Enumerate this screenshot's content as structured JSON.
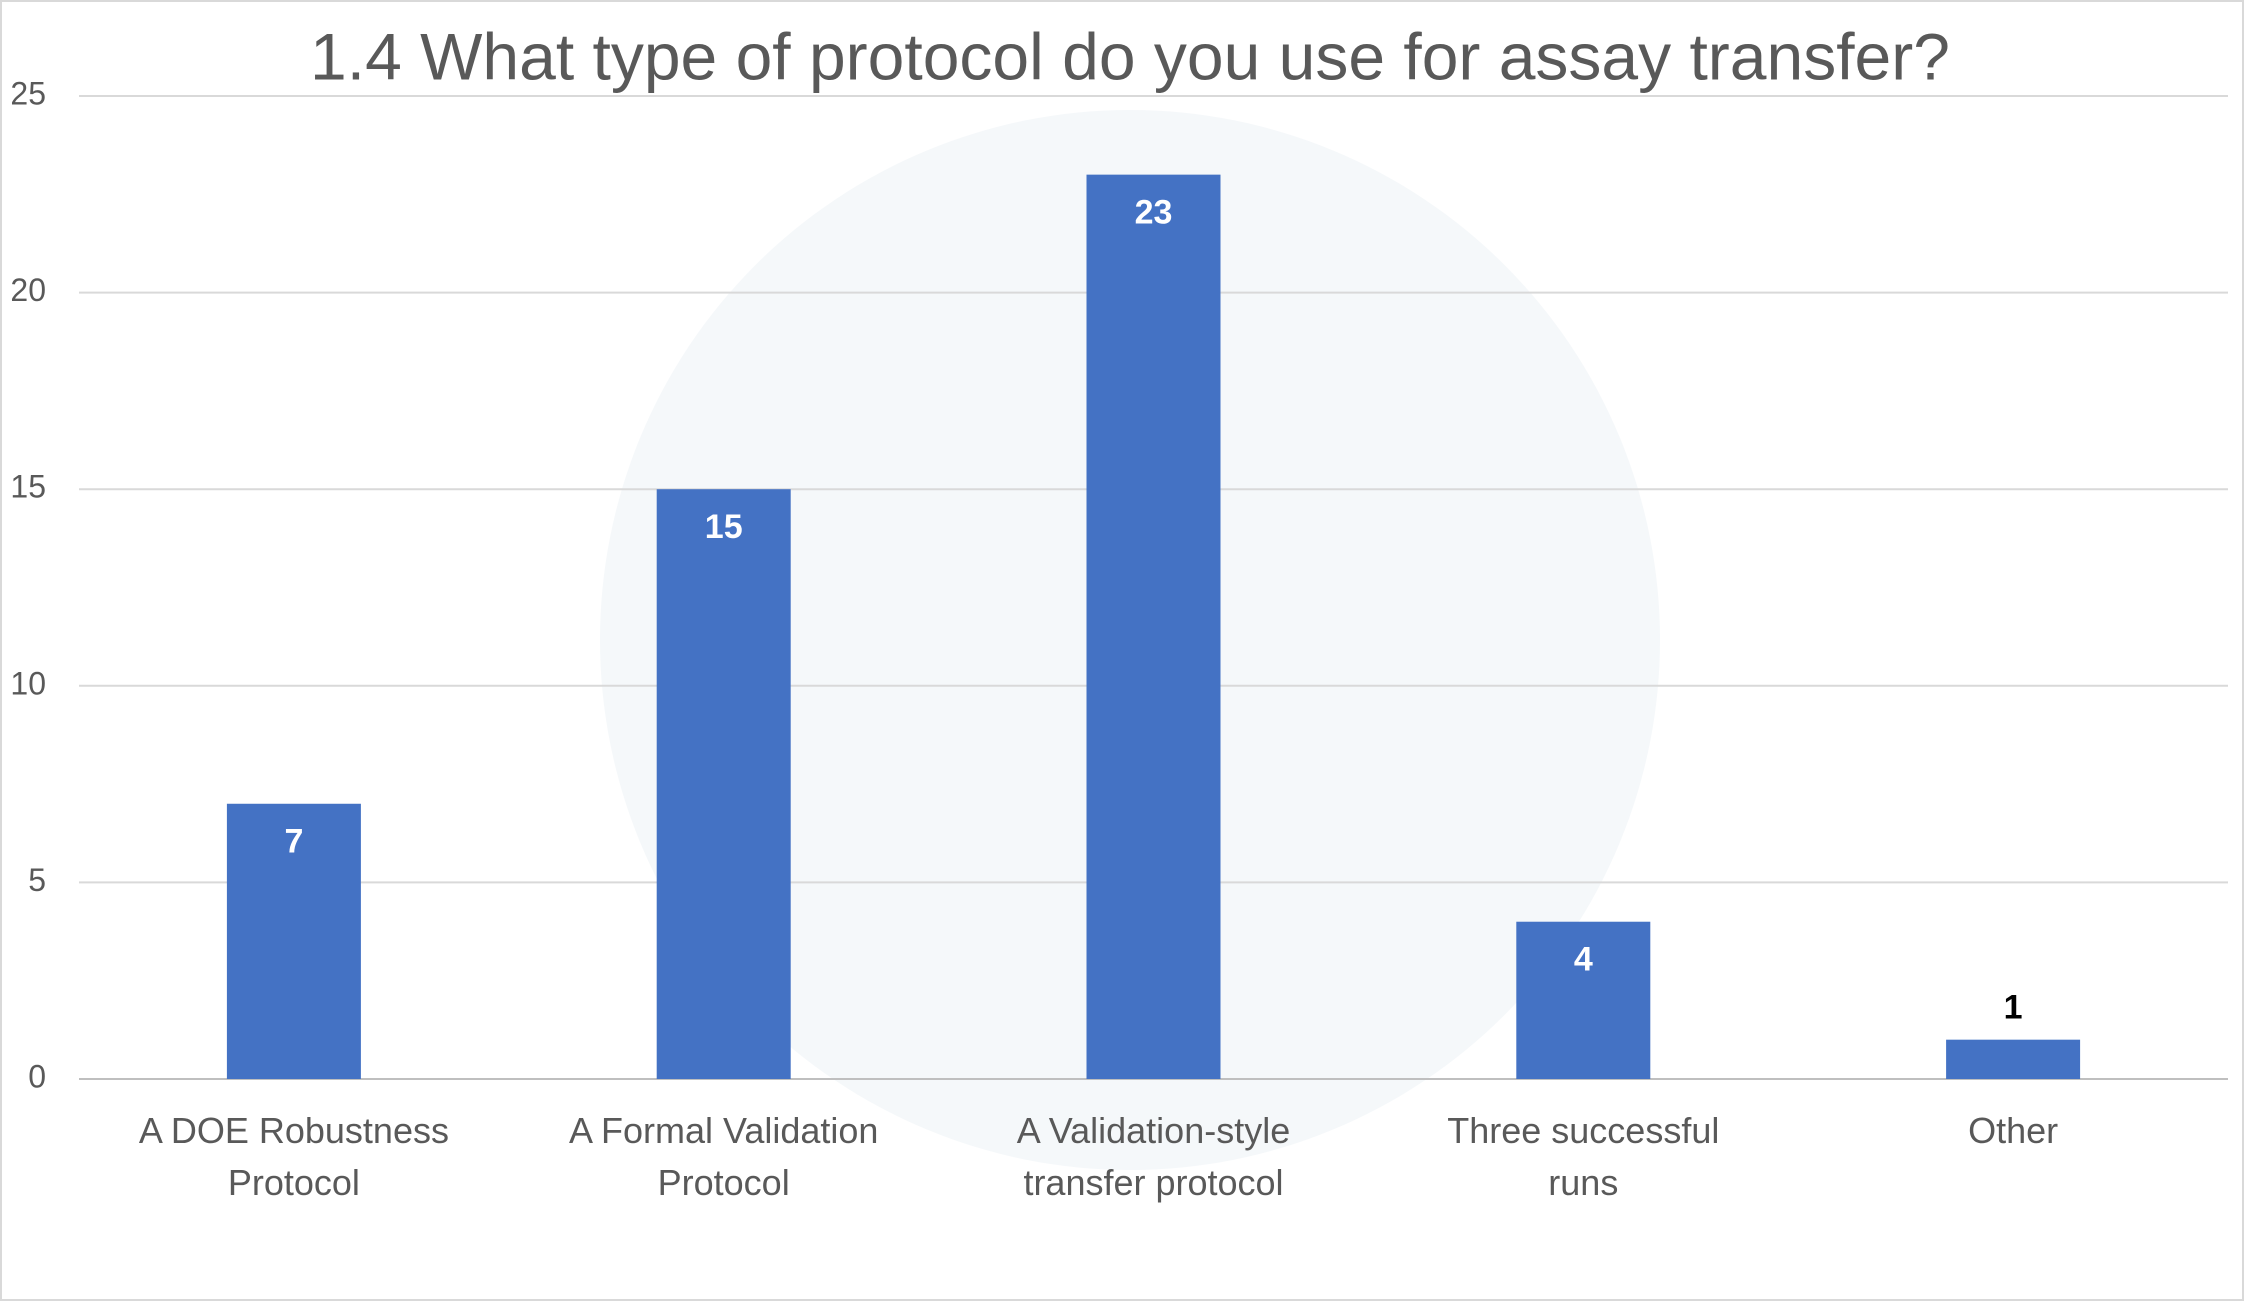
{
  "chart_data": {
    "type": "bar",
    "title": "1.4 What type of protocol do you use for assay transfer?",
    "categories": [
      "A DOE Robustness Protocol",
      "A Formal Validation Protocol",
      "A Validation-style transfer protocol",
      "Three successful runs",
      "Other"
    ],
    "values": [
      7,
      15,
      23,
      4,
      1
    ],
    "color": "#4472c4",
    "ylim": [
      0,
      25
    ],
    "yticks": [
      0,
      5,
      10,
      15,
      20,
      25
    ],
    "grid": true
  }
}
